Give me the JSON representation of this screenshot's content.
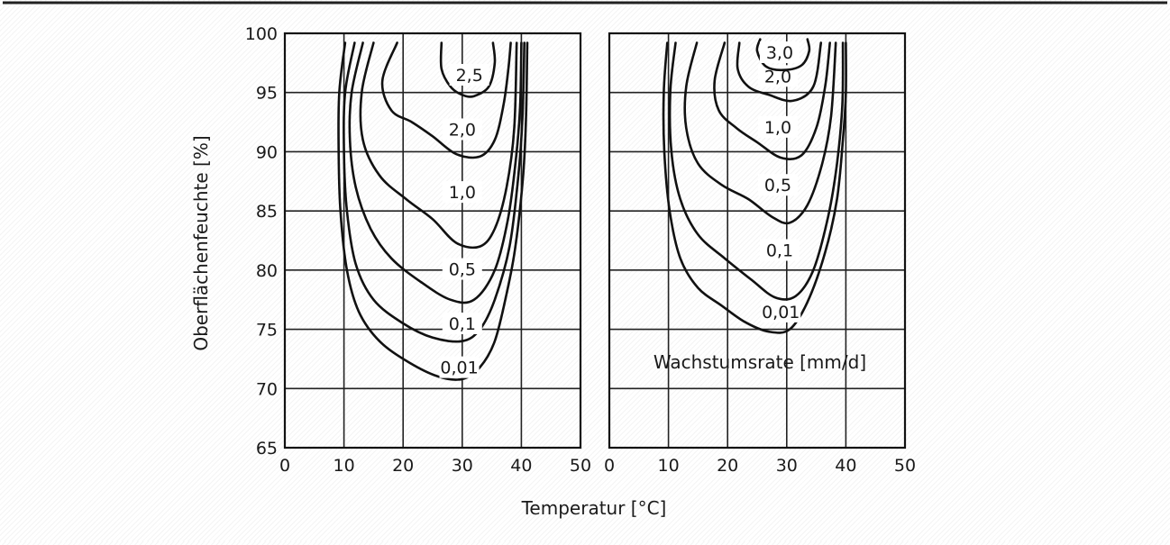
{
  "chart_data": {
    "type": "contour",
    "xlabel": "Temperatur [°C]",
    "ylabel": "Oberflächenfeuchte [%]",
    "legend_note": "Wachstumsrate [mm/d]",
    "panels": [
      {
        "name": "left",
        "xlim": [
          0,
          50
        ],
        "ylim": [
          65,
          100
        ],
        "x_ticks": [
          "0",
          "10",
          "20",
          "30",
          "40",
          "50"
        ],
        "y_ticks": [
          "65",
          "70",
          "75",
          "80",
          "85",
          "90",
          "95",
          "100"
        ],
        "contours": [
          {
            "label": "0,01",
            "label_at": [
              29.5,
              71.8
            ],
            "points": [
              [
                10.2,
                99.2
              ],
              [
                9.2,
                95
              ],
              [
                9.1,
                90
              ],
              [
                9.4,
                85
              ],
              [
                10.5,
                80
              ],
              [
                12.5,
                76.5
              ],
              [
                16,
                74
              ],
              [
                21,
                72.2
              ],
              [
                26,
                71
              ],
              [
                30,
                70.8
              ],
              [
                33,
                71.8
              ],
              [
                35.5,
                74
              ],
              [
                37.5,
                78
              ],
              [
                39,
                82
              ],
              [
                40.3,
                88
              ],
              [
                40.8,
                93
              ],
              [
                41,
                99.2
              ]
            ]
          },
          {
            "label": "0,1",
            "label_at": [
              30,
              75.5
            ],
            "points": [
              [
                11.8,
                99.2
              ],
              [
                10.2,
                95
              ],
              [
                10,
                90
              ],
              [
                10.5,
                85
              ],
              [
                12,
                80.5
              ],
              [
                15,
                77.5
              ],
              [
                20,
                75.5
              ],
              [
                25,
                74.3
              ],
              [
                30,
                74
              ],
              [
                33,
                75
              ],
              [
                35.5,
                77.5
              ],
              [
                38,
                82
              ],
              [
                39.5,
                88
              ],
              [
                40.2,
                93
              ],
              [
                40.5,
                99.2
              ]
            ]
          },
          {
            "label": "0,5",
            "label_at": [
              30,
              80.1
            ],
            "points": [
              [
                13.2,
                99.2
              ],
              [
                11.3,
                95
              ],
              [
                11,
                91
              ],
              [
                12,
                87
              ],
              [
                14.5,
                83.5
              ],
              [
                18,
                81
              ],
              [
                23,
                79
              ],
              [
                28,
                77.5
              ],
              [
                32,
                77.5
              ],
              [
                35.5,
                80
              ],
              [
                37.8,
                84.5
              ],
              [
                39.2,
                90
              ],
              [
                39.8,
                94
              ],
              [
                40,
                99.2
              ]
            ]
          },
          {
            "label": "1,0",
            "label_at": [
              30,
              86.6
            ],
            "points": [
              [
                15,
                99.2
              ],
              [
                13,
                95
              ],
              [
                13.2,
                91
              ],
              [
                16,
                88
              ],
              [
                20.5,
                86
              ],
              [
                25,
                84.3
              ],
              [
                29,
                82.3
              ],
              [
                33,
                82
              ],
              [
                35.5,
                83.5
              ],
              [
                37.5,
                87
              ],
              [
                38.8,
                92
              ],
              [
                39.2,
                99.2
              ]
            ]
          },
          {
            "label": "2,0",
            "label_at": [
              30,
              91.9
            ],
            "points": [
              [
                19,
                99.2
              ],
              [
                16.5,
                96
              ],
              [
                18,
                93.5
              ],
              [
                21.5,
                92.5
              ],
              [
                25,
                91.3
              ],
              [
                29,
                89.8
              ],
              [
                33,
                89.6
              ],
              [
                35.5,
                91
              ],
              [
                37,
                94
              ],
              [
                37.8,
                97
              ],
              [
                38.2,
                99.2
              ]
            ]
          },
          {
            "label": "2,5",
            "label_at": [
              31.2,
              96.5
            ],
            "points": [
              [
                26.5,
                99.2
              ],
              [
                26.5,
                97
              ],
              [
                28,
                95.5
              ],
              [
                30,
                94.8
              ],
              [
                32,
                94.7
              ],
              [
                34.5,
                95.5
              ],
              [
                35.5,
                97.5
              ],
              [
                35.2,
                99.2
              ]
            ]
          }
        ]
      },
      {
        "name": "right",
        "xlim": [
          0,
          50
        ],
        "ylim": [
          65,
          100
        ],
        "x_ticks": [
          "0",
          "10",
          "20",
          "30",
          "40",
          "50"
        ],
        "y_ticks": [],
        "contours": [
          {
            "label": "0,01",
            "label_at": [
              29,
              76.5
            ],
            "points": [
              [
                9.8,
                99.2
              ],
              [
                9.2,
                95
              ],
              [
                9.3,
                90
              ],
              [
                10.2,
                85
              ],
              [
                12,
                81
              ],
              [
                15,
                78.5
              ],
              [
                19,
                77
              ],
              [
                23,
                75.6
              ],
              [
                27,
                74.8
              ],
              [
                30.5,
                75
              ],
              [
                33.5,
                77.3
              ],
              [
                36.5,
                81.5
              ],
              [
                38.5,
                86
              ],
              [
                39.5,
                91
              ],
              [
                40,
                95
              ],
              [
                40,
                99.2
              ]
            ]
          },
          {
            "label": "0,1",
            "label_at": [
              28.8,
              81.7
            ],
            "points": [
              [
                11.2,
                99.2
              ],
              [
                10.3,
                95
              ],
              [
                10.5,
                90
              ],
              [
                12,
                86
              ],
              [
                15,
                83
              ],
              [
                19.5,
                81
              ],
              [
                24,
                79.2
              ],
              [
                28,
                77.7
              ],
              [
                31.5,
                77.8
              ],
              [
                34.5,
                80
              ],
              [
                37,
                84.5
              ],
              [
                38.5,
                89
              ],
              [
                39.4,
                94
              ],
              [
                39.5,
                99.2
              ]
            ]
          },
          {
            "label": "0,5",
            "label_at": [
              28.5,
              87.2
            ],
            "points": [
              [
                14.8,
                99.2
              ],
              [
                13,
                95.5
              ],
              [
                13,
                92
              ],
              [
                15,
                89
              ],
              [
                19,
                87.2
              ],
              [
                23.5,
                86
              ],
              [
                27.5,
                84.5
              ],
              [
                30.5,
                84
              ],
              [
                33.5,
                85.5
              ],
              [
                36,
                89
              ],
              [
                37.5,
                93
              ],
              [
                38.3,
                99.2
              ]
            ]
          },
          {
            "label": "1,0",
            "label_at": [
              28.5,
              92.1
            ],
            "points": [
              [
                19.5,
                99.2
              ],
              [
                17.8,
                96
              ],
              [
                18.5,
                93.5
              ],
              [
                21.5,
                92
              ],
              [
                25,
                90.8
              ],
              [
                29,
                89.5
              ],
              [
                32.5,
                89.7
              ],
              [
                35,
                92
              ],
              [
                36.5,
                95.5
              ],
              [
                37.3,
                99.2
              ]
            ]
          },
          {
            "label": "2,0",
            "label_at": [
              28.5,
              96.4
            ],
            "points": [
              [
                22,
                99.2
              ],
              [
                21.7,
                97
              ],
              [
                23.5,
                95.5
              ],
              [
                27,
                94.8
              ],
              [
                31,
                94.3
              ],
              [
                34.5,
                95.5
              ],
              [
                35.8,
                99.2
              ]
            ]
          },
          {
            "label": "3,0",
            "label_at": [
              28.8,
              98.4
            ],
            "points": [
              [
                25.5,
                99.5
              ],
              [
                25,
                98.5
              ],
              [
                26.5,
                97.2
              ],
              [
                29.5,
                96.9
              ],
              [
                32.5,
                97.3
              ],
              [
                33.8,
                98.5
              ],
              [
                33.5,
                99.5
              ]
            ]
          }
        ]
      }
    ]
  }
}
